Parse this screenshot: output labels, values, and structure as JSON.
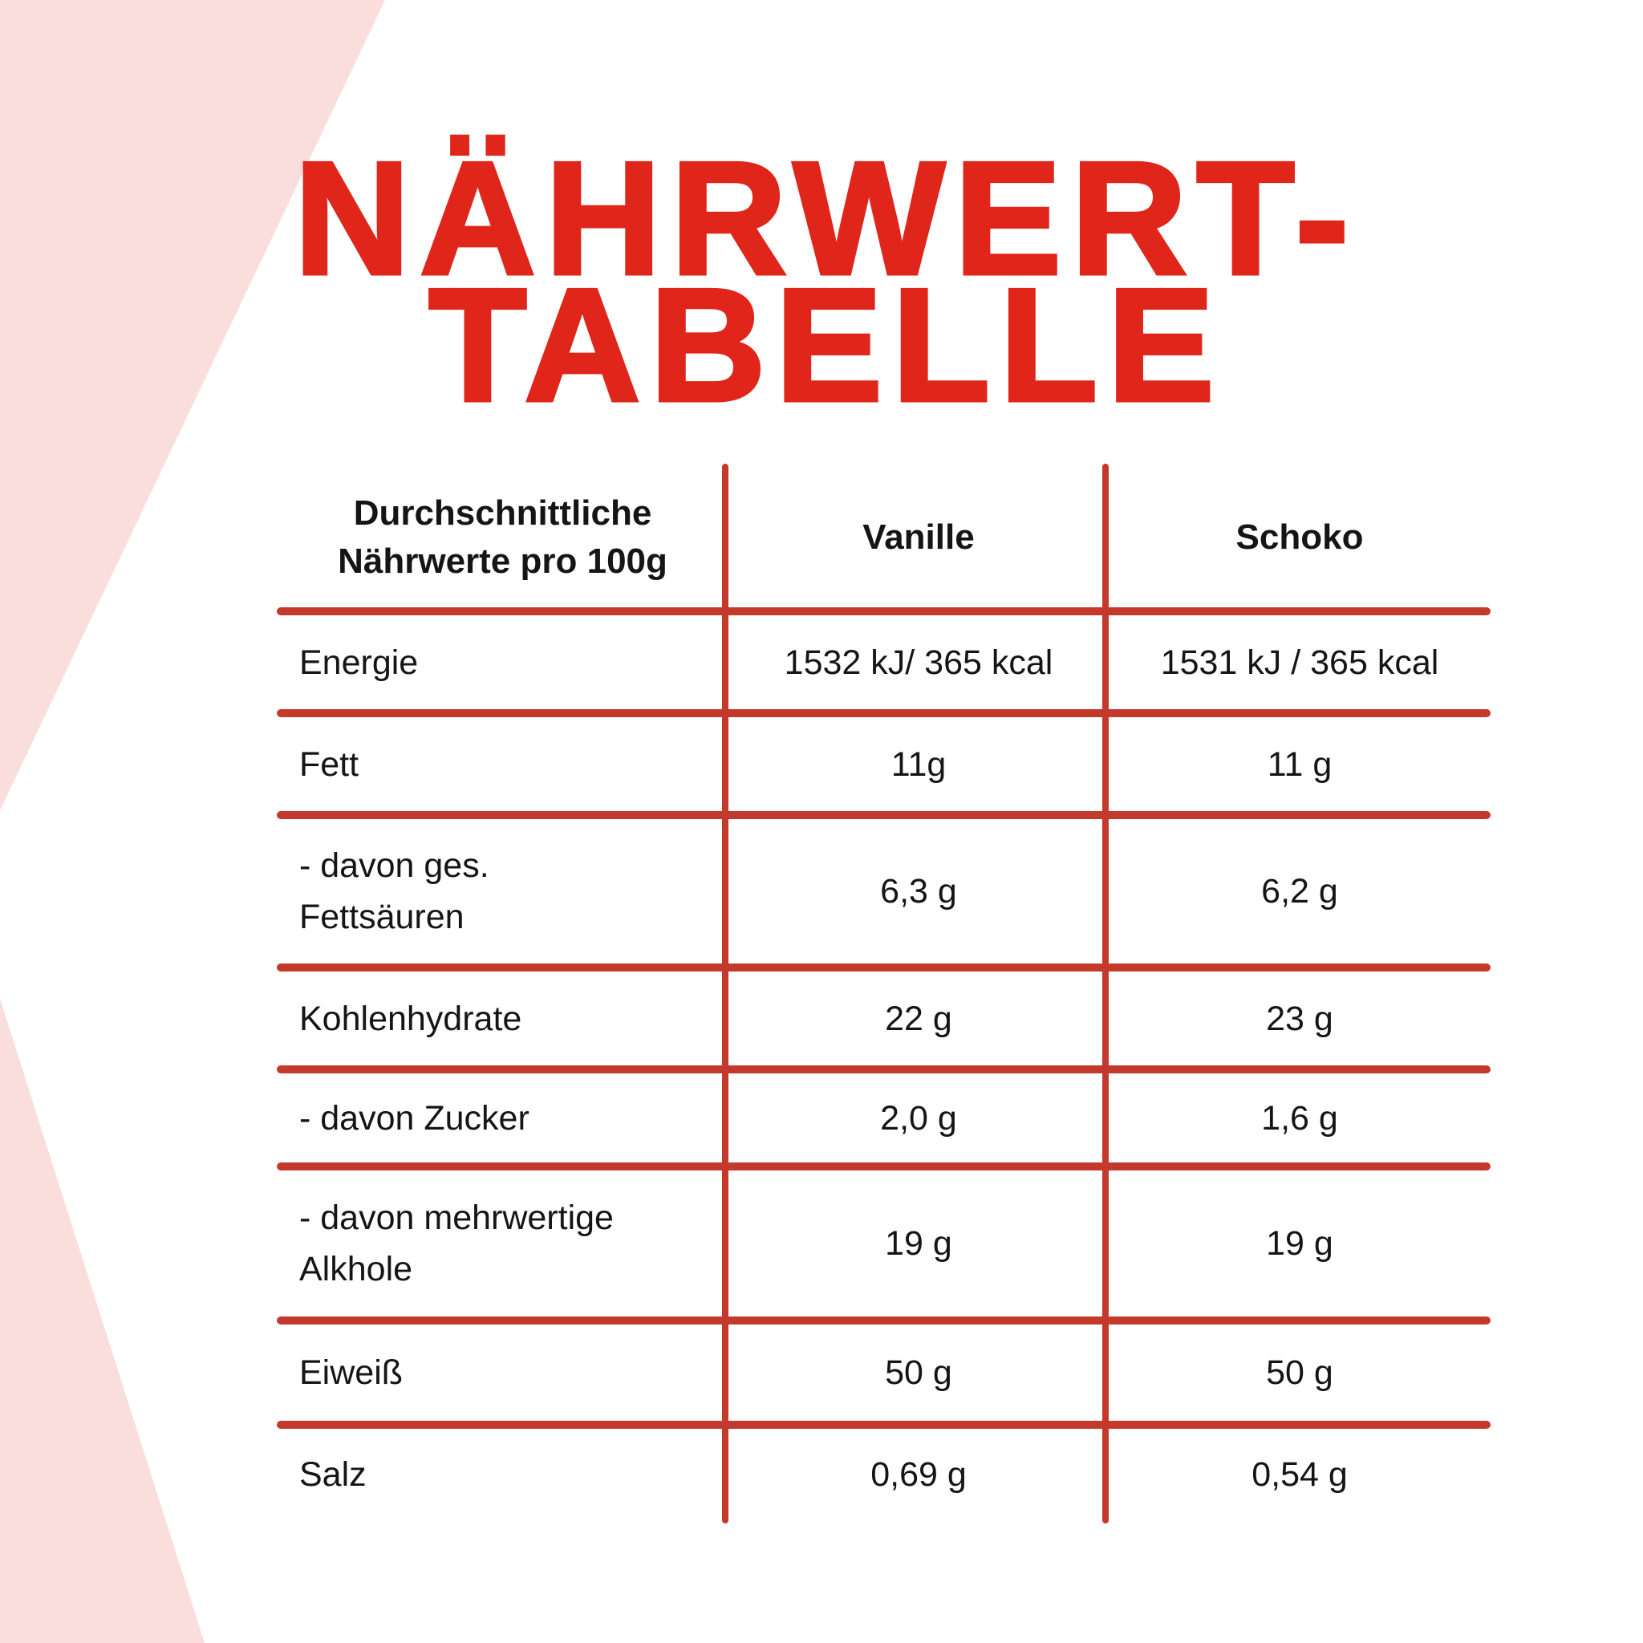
{
  "title": {
    "line1": "NÄHRWERT-",
    "line2": "TABELLE"
  },
  "table": {
    "header": {
      "col1": "Durchschnittliche\nNährwerte pro 100g",
      "col2": "Vanille",
      "col3": "Schoko"
    },
    "rows": [
      {
        "label": "Energie",
        "vanille": "1532 kJ/ 365 kcal",
        "schoko": "1531 kJ / 365 kcal"
      },
      {
        "label": "Fett",
        "vanille": "11g",
        "schoko": "11 g"
      },
      {
        "label": "- davon ges.\nFettsäuren",
        "vanille": "6,3 g",
        "schoko": "6,2 g"
      },
      {
        "label": "Kohlenhydrate",
        "vanille": "22 g",
        "schoko": "23 g"
      },
      {
        "label": "- davon Zucker",
        "vanille": "2,0 g",
        "schoko": "1,6 g"
      },
      {
        "label": "- davon mehrwertige\nAlkhole",
        "vanille": "19 g",
        "schoko": "19 g"
      },
      {
        "label": "Eiweiß",
        "vanille": "50 g",
        "schoko": "50 g"
      },
      {
        "label": "Salz",
        "vanille": "0,69 g",
        "schoko": "0,54 g"
      }
    ]
  },
  "colors": {
    "accent_red": "#e0251b",
    "line_red": "#c33a2c",
    "pink": "#f9dedb",
    "text": "#151515"
  }
}
